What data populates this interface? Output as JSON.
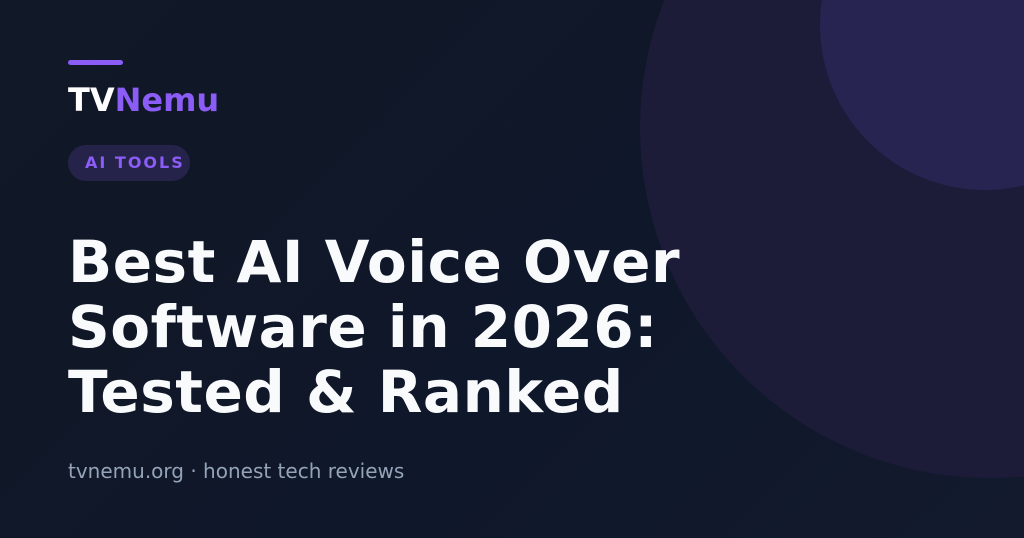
{
  "brand": {
    "part1": "TV",
    "part2": "Nemu"
  },
  "tag": "AI TOOLS",
  "title_lines": [
    "Best AI Voice Over",
    "Software in 2026:",
    "Tested & Ranked"
  ],
  "footer": "tvnemu.org · honest tech reviews"
}
